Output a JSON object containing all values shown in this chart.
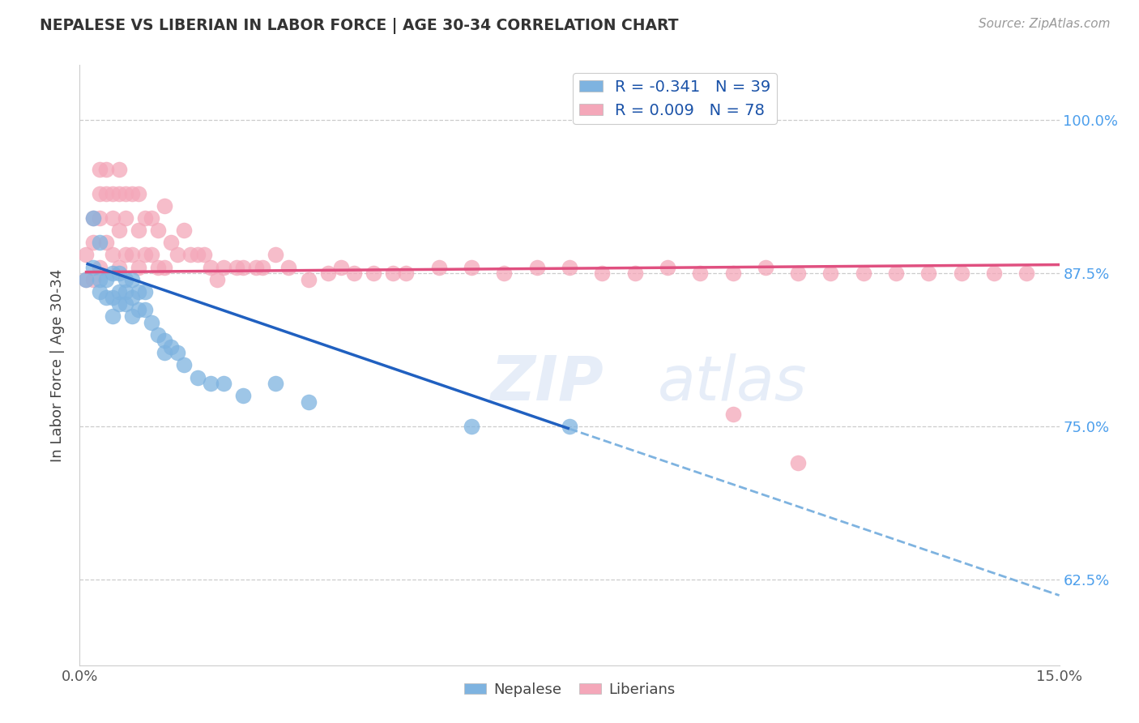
{
  "title": "NEPALESE VS LIBERIAN IN LABOR FORCE | AGE 30-34 CORRELATION CHART",
  "source": "Source: ZipAtlas.com",
  "ylabel": "In Labor Force | Age 30-34",
  "xlabel": "",
  "xlim": [
    0.0,
    0.15
  ],
  "ylim": [
    0.555,
    1.045
  ],
  "yticks": [
    0.625,
    0.75,
    0.875,
    1.0
  ],
  "ytick_labels": [
    "62.5%",
    "75.0%",
    "87.5%",
    "100.0%"
  ],
  "xticks": [
    0.0,
    0.025,
    0.05,
    0.075,
    0.1,
    0.125,
    0.15
  ],
  "xtick_labels": [
    "0.0%",
    "",
    "",
    "",
    "",
    "",
    "15.0%"
  ],
  "nepalese_color": "#7eb3e0",
  "liberian_color": "#f4a7b9",
  "nepalese_R": -0.341,
  "nepalese_N": 39,
  "liberian_R": 0.009,
  "liberian_N": 78,
  "legend_R_color": "#1a52a8",
  "trend_blue_color": "#2060c0",
  "trend_pink_color": "#e05080",
  "trend_dashed_color": "#7eb3e0",
  "watermark": "ZIPatlas",
  "neo_trend_x0": 0.001,
  "neo_trend_y0": 0.883,
  "neo_trend_x1": 0.075,
  "neo_trend_y1": 0.748,
  "neo_trend_ext_x1": 0.15,
  "neo_trend_ext_y1": 0.612,
  "lib_trend_x0": 0.001,
  "lib_trend_y0": 0.876,
  "lib_trend_x1": 0.15,
  "lib_trend_y1": 0.882,
  "nepalese_x": [
    0.001,
    0.002,
    0.002,
    0.003,
    0.003,
    0.003,
    0.004,
    0.004,
    0.005,
    0.005,
    0.005,
    0.006,
    0.006,
    0.006,
    0.007,
    0.007,
    0.007,
    0.008,
    0.008,
    0.008,
    0.009,
    0.009,
    0.01,
    0.01,
    0.011,
    0.012,
    0.013,
    0.013,
    0.014,
    0.015,
    0.016,
    0.018,
    0.02,
    0.022,
    0.025,
    0.03,
    0.035,
    0.06,
    0.075
  ],
  "nepalese_y": [
    0.87,
    0.92,
    0.88,
    0.9,
    0.87,
    0.86,
    0.87,
    0.855,
    0.875,
    0.855,
    0.84,
    0.875,
    0.86,
    0.85,
    0.87,
    0.86,
    0.85,
    0.87,
    0.855,
    0.84,
    0.86,
    0.845,
    0.86,
    0.845,
    0.835,
    0.825,
    0.82,
    0.81,
    0.815,
    0.81,
    0.8,
    0.79,
    0.785,
    0.785,
    0.775,
    0.785,
    0.77,
    0.75,
    0.75
  ],
  "liberian_x": [
    0.001,
    0.001,
    0.002,
    0.002,
    0.002,
    0.003,
    0.003,
    0.003,
    0.003,
    0.004,
    0.004,
    0.004,
    0.005,
    0.005,
    0.005,
    0.006,
    0.006,
    0.006,
    0.006,
    0.007,
    0.007,
    0.007,
    0.008,
    0.008,
    0.009,
    0.009,
    0.009,
    0.01,
    0.01,
    0.011,
    0.011,
    0.012,
    0.012,
    0.013,
    0.013,
    0.014,
    0.015,
    0.016,
    0.017,
    0.018,
    0.019,
    0.02,
    0.021,
    0.022,
    0.024,
    0.025,
    0.027,
    0.028,
    0.03,
    0.032,
    0.035,
    0.038,
    0.04,
    0.042,
    0.045,
    0.048,
    0.05,
    0.055,
    0.06,
    0.065,
    0.07,
    0.075,
    0.08,
    0.085,
    0.09,
    0.095,
    0.1,
    0.105,
    0.11,
    0.115,
    0.12,
    0.125,
    0.13,
    0.135,
    0.14,
    0.145,
    0.1,
    0.11
  ],
  "liberian_y": [
    0.89,
    0.87,
    0.92,
    0.9,
    0.87,
    0.96,
    0.94,
    0.92,
    0.88,
    0.96,
    0.94,
    0.9,
    0.94,
    0.92,
    0.89,
    0.96,
    0.94,
    0.91,
    0.88,
    0.94,
    0.92,
    0.89,
    0.94,
    0.89,
    0.94,
    0.91,
    0.88,
    0.92,
    0.89,
    0.92,
    0.89,
    0.91,
    0.88,
    0.93,
    0.88,
    0.9,
    0.89,
    0.91,
    0.89,
    0.89,
    0.89,
    0.88,
    0.87,
    0.88,
    0.88,
    0.88,
    0.88,
    0.88,
    0.89,
    0.88,
    0.87,
    0.875,
    0.88,
    0.875,
    0.875,
    0.875,
    0.875,
    0.88,
    0.88,
    0.875,
    0.88,
    0.88,
    0.875,
    0.875,
    0.88,
    0.875,
    0.875,
    0.88,
    0.875,
    0.875,
    0.875,
    0.875,
    0.875,
    0.875,
    0.875,
    0.875,
    0.76,
    0.72
  ]
}
